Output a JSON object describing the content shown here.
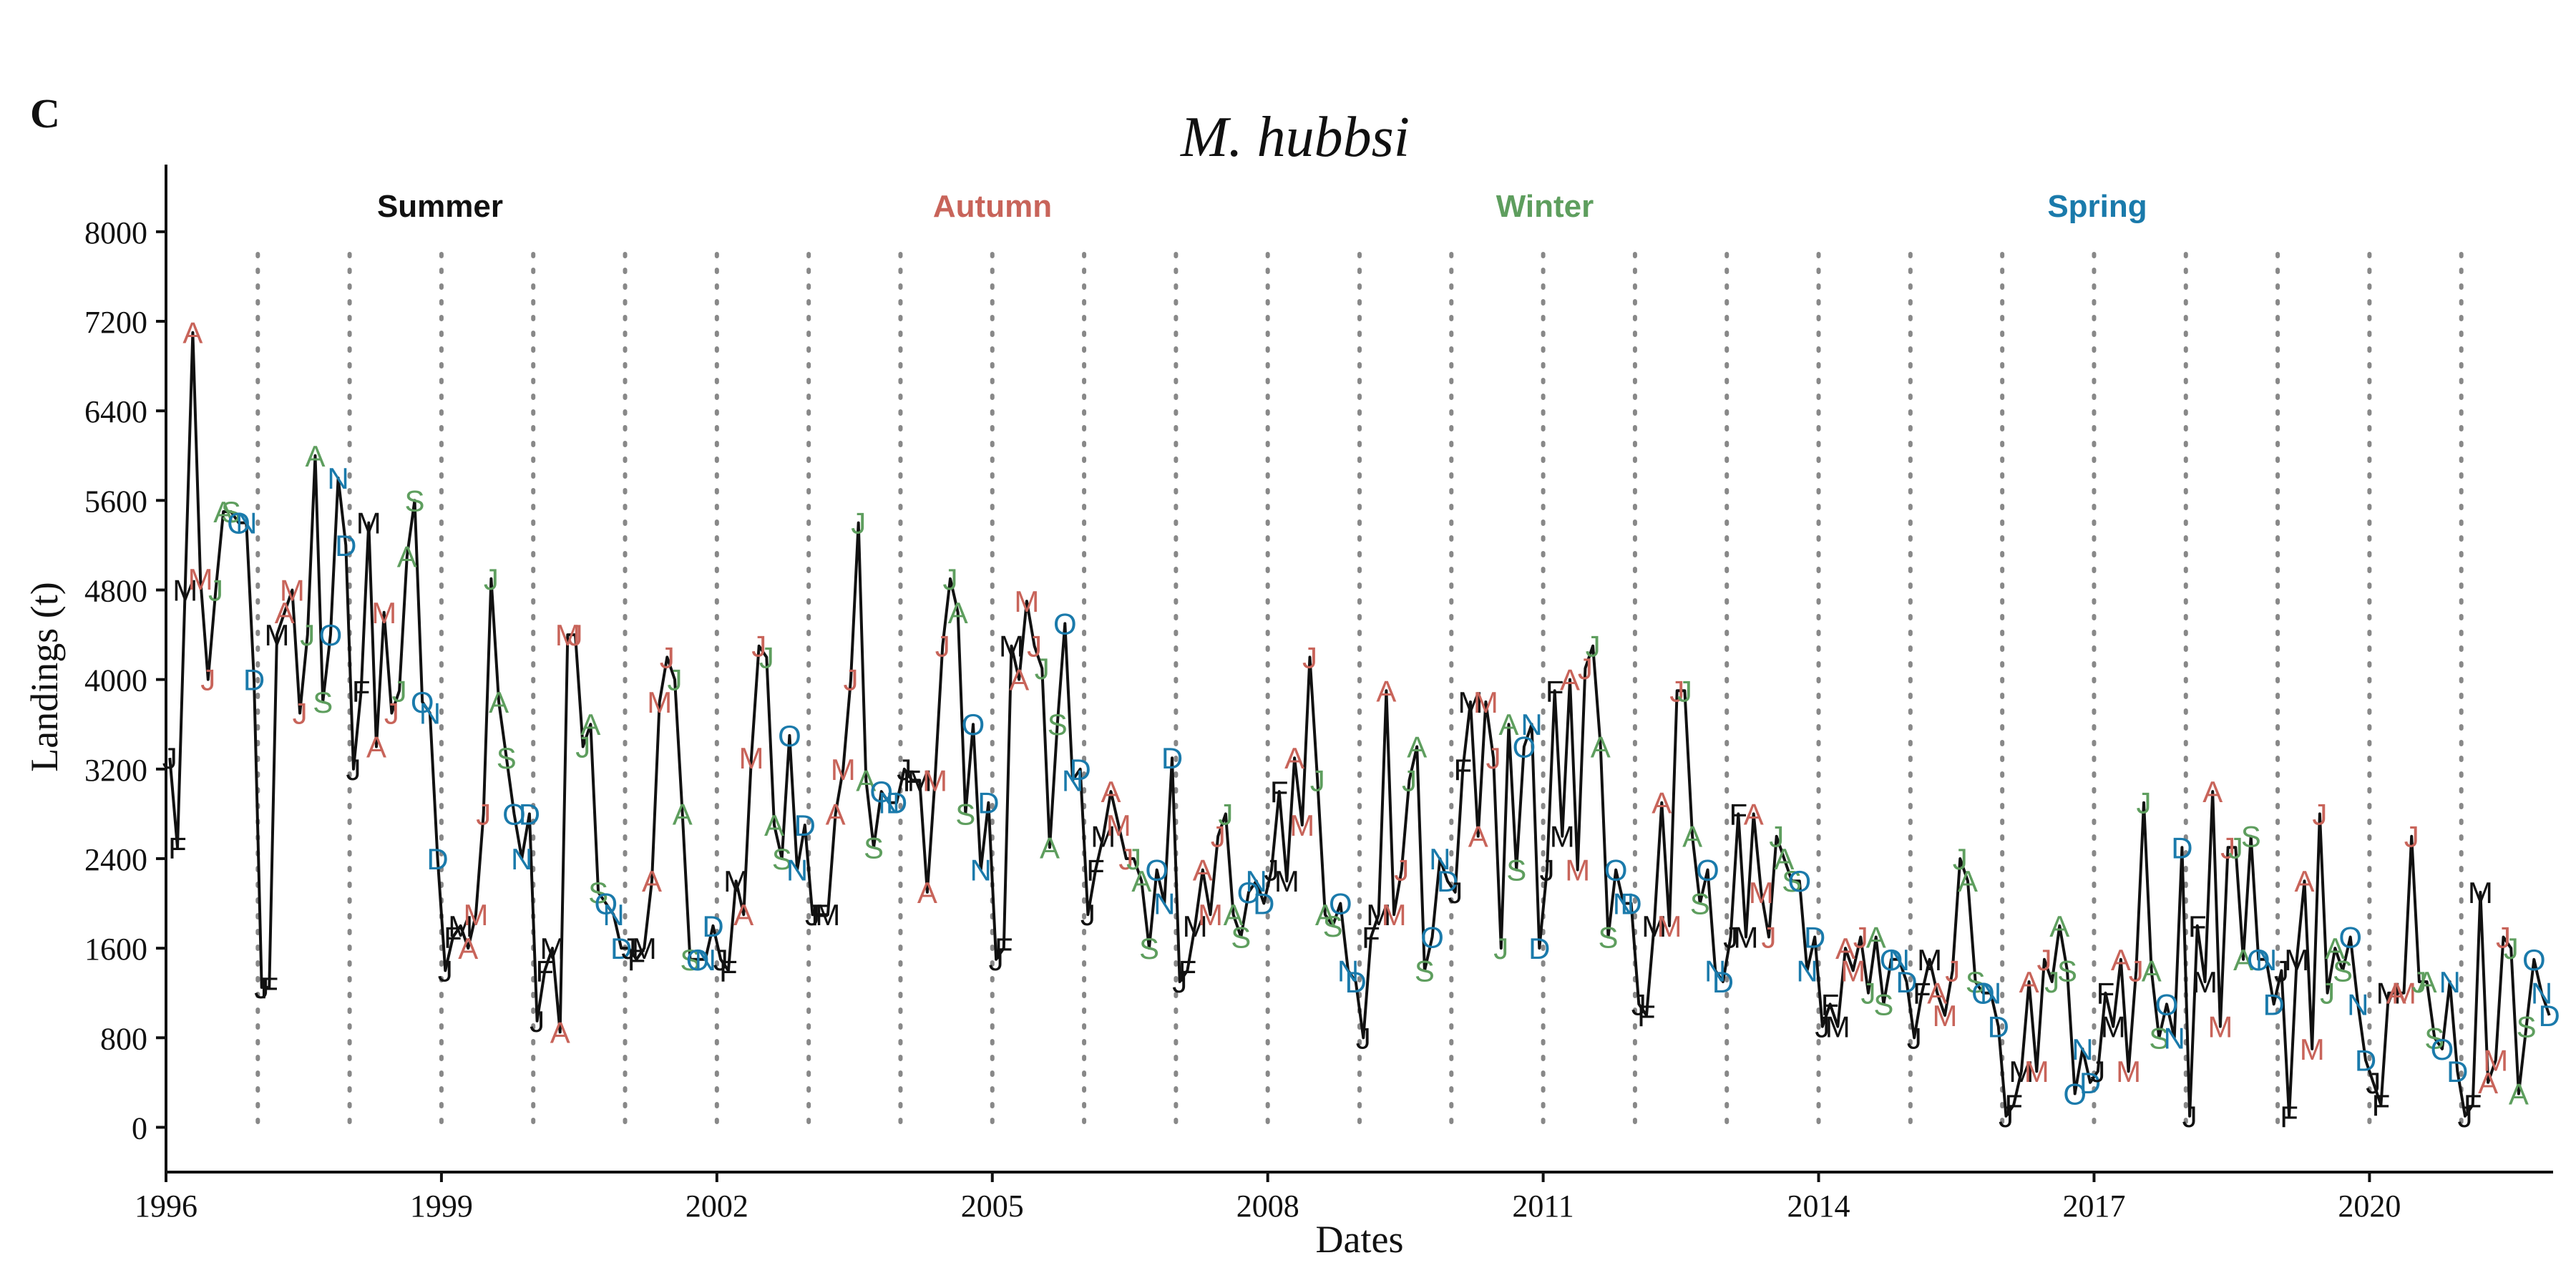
{
  "panel_label": "C",
  "chart_data": {
    "type": "line",
    "title": "M. hubbsi",
    "xlabel": "Dates",
    "ylabel": "Landings (t)",
    "xlim": [
      1996,
      2022
    ],
    "ylim": [
      -400,
      8600
    ],
    "x_ticks": [
      1996,
      1999,
      2002,
      2005,
      2008,
      2011,
      2014,
      2017,
      2020
    ],
    "y_ticks": [
      0,
      800,
      1600,
      2400,
      3200,
      4000,
      4800,
      5600,
      6400,
      7200,
      8000
    ],
    "year_dividers": [
      1997,
      1998,
      1999,
      2000,
      2001,
      2002,
      2003,
      2004,
      2005,
      2006,
      2007,
      2008,
      2009,
      2010,
      2011,
      2012,
      2013,
      2014,
      2015,
      2016,
      2017,
      2018,
      2019,
      2020,
      2021
    ],
    "grid": false,
    "month_labels": [
      "J",
      "F",
      "M",
      "A",
      "M",
      "J",
      "J",
      "A",
      "S",
      "O",
      "N",
      "D"
    ],
    "season_of_month": [
      "summer",
      "summer",
      "summer",
      "autumn",
      "autumn",
      "autumn",
      "winter",
      "winter",
      "winter",
      "spring",
      "spring",
      "spring"
    ],
    "seasons": [
      {
        "key": "summer",
        "name": "Summer",
        "color": "#111111"
      },
      {
        "key": "autumn",
        "name": "Autumn",
        "color": "#c8645a"
      },
      {
        "key": "winter",
        "name": "Winter",
        "color": "#5e9e5e"
      },
      {
        "key": "spring",
        "name": "Spring",
        "color": "#1a7aab"
      }
    ],
    "legend_placement": "top",
    "line_color": "#111111",
    "divider_color": "#888888",
    "start": {
      "year": 1996,
      "month": 1
    },
    "series": [
      {
        "values": [
          3300,
          2500,
          4800,
          7100,
          4900,
          4000,
          4800,
          5500,
          5500,
          5400,
          5400,
          4000,
          1250,
          1250,
          4400,
          4600,
          4800,
          3700,
          4400,
          6000,
          3800,
          4400,
          5800,
          5200,
          3200,
          3900,
          5400,
          3400,
          4600,
          3700,
          3900,
          5100,
          5600,
          3800,
          3700,
          2400,
          1400,
          1700,
          1800,
          1600,
          1900,
          2800,
          4900,
          3800,
          3300,
          2800,
          2400,
          2800,
          950,
          1400,
          1600,
          850,
          4400,
          4400,
          3400,
          3600,
          2100,
          2000,
          1900,
          1600,
          1600,
          1500,
          1600,
          2200,
          3800,
          4200,
          4000,
          2800,
          1500,
          1500,
          1500,
          1800,
          1500,
          1400,
          2200,
          1900,
          3300,
          4300,
          4200,
          2700,
          2400,
          3500,
          2300,
          2700,
          1900,
          1900,
          1900,
          2800,
          3200,
          4000,
          5400,
          3100,
          2500,
          3000,
          2900,
          2900,
          3200,
          3100,
          3100,
          2100,
          3100,
          4300,
          4900,
          4600,
          2800,
          3600,
          2300,
          2900,
          1500,
          1600,
          4300,
          4000,
          4700,
          4300,
          4100,
          2500,
          3600,
          4500,
          3100,
          3200,
          1900,
          2300,
          2600,
          3000,
          2700,
          2400,
          2400,
          2200,
          1600,
          2300,
          2000,
          3300,
          1300,
          1400,
          1800,
          2300,
          1900,
          2600,
          2800,
          1900,
          1700,
          2100,
          2200,
          2000,
          2300,
          3000,
          2200,
          3300,
          2700,
          4200,
          3100,
          1900,
          1800,
          2000,
          1400,
          1300,
          800,
          1700,
          1900,
          3900,
          1900,
          2300,
          3100,
          3400,
          1400,
          1700,
          2400,
          2200,
          2100,
          3200,
          3800,
          2600,
          3800,
          3300,
          1600,
          3600,
          2300,
          3400,
          3600,
          1600,
          2300,
          3900,
          2600,
          4000,
          2300,
          4100,
          4300,
          3400,
          1700,
          2300,
          2000,
          2000,
          1100,
          1000,
          1800,
          2900,
          1800,
          3900,
          3900,
          2600,
          2000,
          2300,
          1400,
          1300,
          1700,
          2800,
          1700,
          2800,
          2100,
          1700,
          2600,
          2400,
          2200,
          2200,
          1400,
          1700,
          900,
          1100,
          900,
          1600,
          1400,
          1700,
          1200,
          1700,
          1100,
          1500,
          1500,
          1300,
          800,
          1200,
          1500,
          1200,
          1000,
          1400,
          2400,
          2200,
          1300,
          1200,
          1200,
          900,
          100,
          200,
          500,
          1300,
          500,
          1500,
          1300,
          1800,
          1400,
          300,
          700,
          400,
          500,
          1200,
          900,
          1500,
          500,
          1400,
          2900,
          1400,
          800,
          1100,
          800,
          2500,
          100,
          1800,
          1300,
          3000,
          900,
          2500,
          2500,
          1500,
          2600,
          1500,
          1500,
          1100,
          1400,
          100,
          1500,
          2200,
          700,
          2800,
          1200,
          1600,
          1400,
          1700,
          1100,
          600,
          400,
          200,
          1200,
          1200,
          1200,
          2600,
          1300,
          1300,
          800,
          700,
          1300,
          500,
          100,
          200,
          2100,
          400,
          600,
          1700,
          1600,
          300,
          900,
          1500,
          1200,
          1000
        ]
      }
    ]
  }
}
